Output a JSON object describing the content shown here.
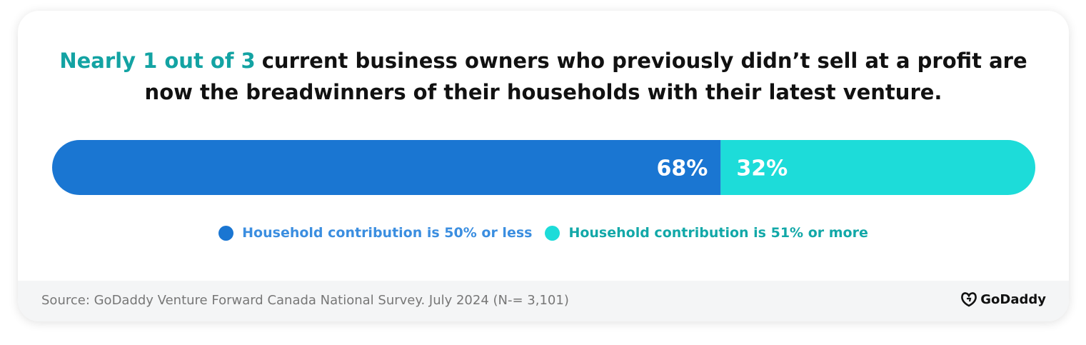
{
  "chart_data": {
    "type": "bar",
    "stacked": true,
    "orientation": "horizontal",
    "title_highlight": "Nearly 1 out of 3",
    "title": "current business owners who previously didn’t sell at a profit are now the breadwinners of their households with their latest venture.",
    "series": [
      {
        "name": "Household contribution is 50% or less",
        "color": "#1a76d2",
        "values": [
          68
        ],
        "value_labels": [
          "68%"
        ]
      },
      {
        "name": "Household contribution is 51% or more",
        "color": "#1ddcd9",
        "values": [
          32
        ],
        "value_labels": [
          "32%"
        ]
      }
    ],
    "source": "Source: GoDaddy Venture Forward Canada National Survey. July 2024 (N-= 3,101)",
    "logo": "GoDaddy"
  }
}
